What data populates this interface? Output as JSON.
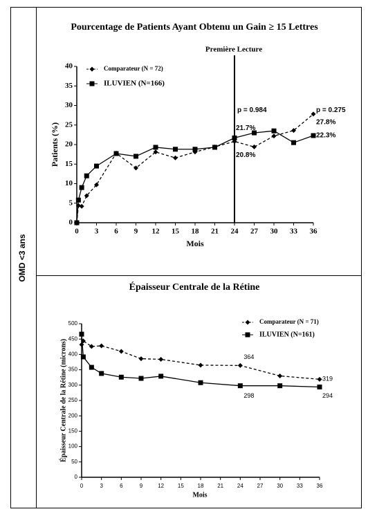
{
  "row_label": "OMD <3 ans",
  "chart_data": [
    {
      "type": "line",
      "title": "Pourcentage de Patients Ayant Obtenu un Gain ≥ 15 Lettres",
      "x_label": "Mois",
      "y_label": "Patients (%)",
      "x": [
        0,
        0.25,
        0.75,
        1.5,
        3,
        6,
        9,
        12,
        15,
        18,
        21,
        24,
        27,
        30,
        33,
        36
      ],
      "series": [
        {
          "name": "Comparateur (N = 72)",
          "color": "#000000",
          "marker": "diamond",
          "dashed": true,
          "values": [
            0,
            4.4,
            4.2,
            6.9,
            9.7,
            17.8,
            14.0,
            18.1,
            16.6,
            18.1,
            19.4,
            20.8,
            19.4,
            22.2,
            23.6,
            27.8
          ],
          "value_labels": [
            null,
            null,
            null,
            null,
            null,
            null,
            null,
            null,
            null,
            null,
            null,
            "20.8%",
            null,
            null,
            null,
            "27.8%"
          ]
        },
        {
          "name": "ILUVIEN (N=166)",
          "color": "#000000",
          "marker": "square",
          "dashed": false,
          "values": [
            0,
            5.8,
            9.0,
            12.0,
            14.5,
            17.7,
            17.0,
            19.3,
            18.8,
            18.8,
            19.3,
            21.7,
            23.0,
            23.5,
            20.5,
            22.3
          ],
          "value_labels": [
            null,
            null,
            null,
            null,
            null,
            null,
            null,
            null,
            null,
            null,
            null,
            "21.7%",
            null,
            null,
            null,
            "22.3%"
          ]
        }
      ],
      "xlim": [
        0,
        36
      ],
      "xticks": [
        0,
        3,
        6,
        9,
        12,
        15,
        18,
        21,
        24,
        27,
        30,
        33,
        36
      ],
      "ylim": [
        0,
        40
      ],
      "yticks": [
        0,
        5,
        10,
        15,
        20,
        25,
        30,
        35,
        40
      ],
      "vline": {
        "x": 24,
        "label": "Première Lecture"
      },
      "annotations": [
        {
          "text": "p = 0.984",
          "x": 24,
          "y": 28.8
        },
        {
          "text": "p = 0.275",
          "x": 36,
          "y": 28.8
        }
      ],
      "legend": "top-left"
    },
    {
      "type": "line",
      "title": "Épaisseur Centrale de la Rétine",
      "x_label": "Mois",
      "y_label": "Épaisseur Centrale de la Rétine (microns)",
      "x": [
        0,
        0.25,
        1.5,
        3,
        6,
        9,
        12,
        18,
        24,
        30,
        36
      ],
      "series": [
        {
          "name": "Comparateur (N = 71)",
          "color": "#000000",
          "marker": "diamond",
          "dashed": true,
          "values": [
            432,
            444,
            426,
            428,
            410,
            386,
            384,
            365,
            364,
            330,
            319
          ],
          "value_labels": [
            null,
            null,
            null,
            null,
            null,
            null,
            null,
            null,
            "364",
            null,
            "319"
          ]
        },
        {
          "name": "ILUVIEN (N=161)",
          "color": "#000000",
          "marker": "square",
          "dashed": false,
          "values": [
            466,
            392,
            358,
            338,
            326,
            322,
            329,
            308,
            298,
            298,
            294
          ],
          "value_labels": [
            null,
            null,
            null,
            null,
            null,
            null,
            null,
            null,
            "298",
            null,
            "294"
          ]
        }
      ],
      "xlim": [
        0,
        36
      ],
      "xticks": [
        0,
        3,
        6,
        9,
        12,
        15,
        18,
        21,
        24,
        27,
        30,
        33,
        36
      ],
      "ylim": [
        0,
        500
      ],
      "yticks": [
        0,
        50,
        100,
        150,
        200,
        250,
        300,
        350,
        400,
        450,
        500
      ],
      "legend": "top-right"
    }
  ]
}
